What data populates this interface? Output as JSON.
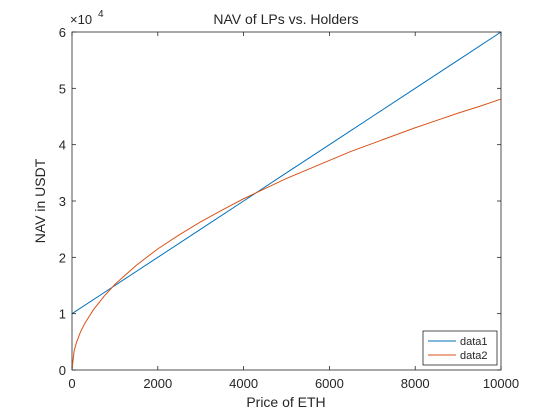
{
  "chart_data": {
    "type": "line",
    "title": "NAV of LPs vs. Holders",
    "xlabel": "Price of ETH",
    "ylabel": "NAV in USDT",
    "y_exponent_label": "×10",
    "y_exponent_power": "4",
    "xlim": [
      0,
      10000
    ],
    "ylim": [
      0,
      60000
    ],
    "x_ticks": [
      0,
      2000,
      4000,
      6000,
      8000,
      10000
    ],
    "x_tick_labels": [
      "0",
      "2000",
      "4000",
      "6000",
      "8000",
      "10000"
    ],
    "y_ticks": [
      0,
      10000,
      20000,
      30000,
      40000,
      50000,
      60000
    ],
    "y_tick_labels": [
      "0",
      "1",
      "2",
      "3",
      "4",
      "5",
      "6"
    ],
    "grid": false,
    "legend_position": "bottom-right",
    "colors": {
      "data1": "#0072BD",
      "data2": "#D95319",
      "axis": "#262626"
    },
    "series": [
      {
        "name": "data1",
        "x": [
          0,
          1000,
          2000,
          3000,
          4000,
          5000,
          6000,
          7000,
          8000,
          9000,
          10000
        ],
        "y": [
          10000,
          15000,
          20000,
          25000,
          30000,
          35000,
          40000,
          45000,
          50000,
          55000,
          60000
        ]
      },
      {
        "name": "data2",
        "x": [
          0,
          50,
          100,
          200,
          300,
          500,
          750,
          1000,
          1500,
          2000,
          2500,
          3000,
          3500,
          4000,
          4500,
          5000,
          5500,
          6000,
          6500,
          7000,
          7500,
          8000,
          8500,
          9000,
          9500,
          10000
        ],
        "y": [
          0,
          3400,
          4800,
          6800,
          8300,
          10700,
          13100,
          15200,
          18600,
          21500,
          24000,
          26300,
          28400,
          30400,
          32200,
          34000,
          35600,
          37200,
          38800,
          40200,
          41600,
          43000,
          44300,
          45600,
          46800,
          48100
        ]
      }
    ]
  }
}
